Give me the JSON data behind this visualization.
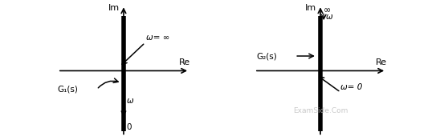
{
  "left_plot": {
    "im_label": "Im",
    "re_label": "Re",
    "g_label": "G₁(s)",
    "omega_inf_label": "ω= ∞",
    "omega_label": "ω",
    "zero_label": "0"
  },
  "right_plot": {
    "im_label": "Im",
    "re_label": "Re",
    "g_label": "G₂(s)",
    "omega_inf_label": "∞",
    "omega_label": "ω",
    "omega_zero_label": "ω= 0",
    "watermark": "ExamSide.Com",
    "watermark_color": "#bbbbbb"
  },
  "bg_color": "#ffffff",
  "text_color": "#000000",
  "thick_line_color": "#000000",
  "thick_linewidth": 4.0,
  "axis_linewidth": 1.2
}
